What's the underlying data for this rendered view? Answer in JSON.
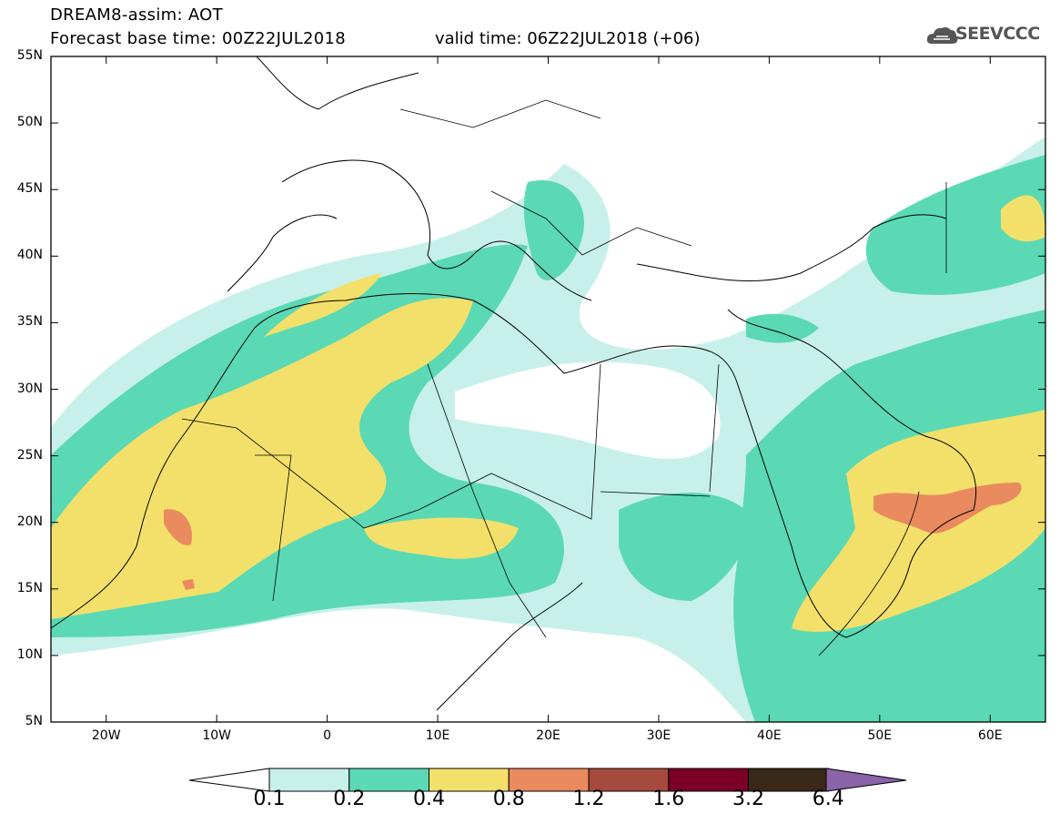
{
  "title": {
    "line1": "DREAM8-assim: AOT",
    "line2": "Forecast base time: 00Z22JUL2018",
    "valid": "valid time: 06Z22JUL2018 (+06)"
  },
  "logo": {
    "text": "SEEVCCC",
    "icon": "cloud-icon"
  },
  "axes": {
    "lat_labels": [
      "55N",
      "50N",
      "45N",
      "40N",
      "35N",
      "30N",
      "25N",
      "20N",
      "15N",
      "10N",
      "5N"
    ],
    "lon_labels": [
      "20W",
      "10W",
      "0",
      "10E",
      "20E",
      "30E",
      "40E",
      "50E",
      "60E"
    ]
  },
  "map_extent": {
    "lon": [
      -25,
      65
    ],
    "lat": [
      5,
      55
    ]
  },
  "colorbar": {
    "labels": [
      "0.1",
      "0.2",
      "0.4",
      "0.8",
      "1.2",
      "1.6",
      "3.2",
      "6.4"
    ],
    "colors": [
      "#c8f0ea",
      "#5ad9b4",
      "#f3e06a",
      "#e98a5f",
      "#a54a3d",
      "#7a0028",
      "#3a2818",
      "#8a63a8"
    ]
  }
}
